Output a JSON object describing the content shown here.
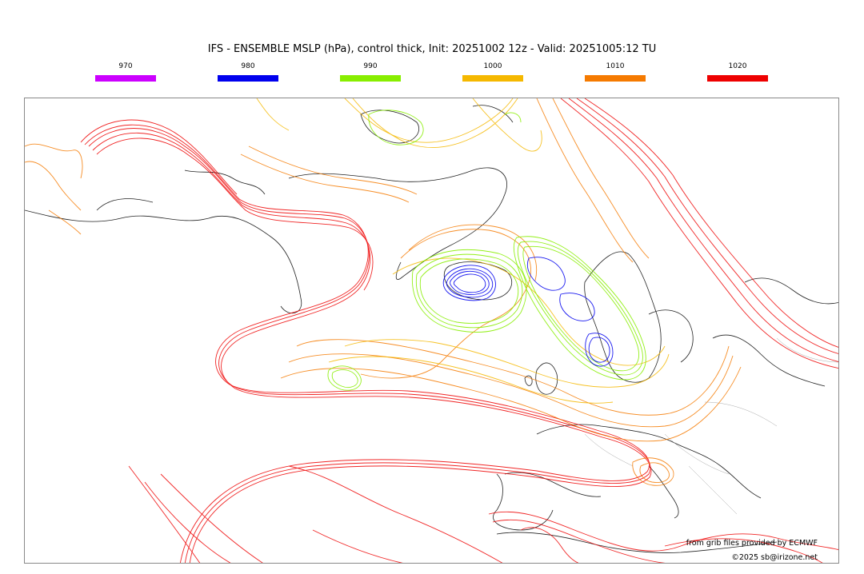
{
  "title": "IFS - ENSEMBLE MSLP (hPa), control thick, Init: 20251002 12z - Valid: 20251005:12 TU",
  "legend": [
    {
      "label": "970",
      "color": "#cc00ff"
    },
    {
      "label": "980",
      "color": "#0000ee"
    },
    {
      "label": "990",
      "color": "#88ee00"
    },
    {
      "label": "1000",
      "color": "#f5b800"
    },
    {
      "label": "1010",
      "color": "#f57a00"
    },
    {
      "label": "1020",
      "color": "#ee0000"
    }
  ],
  "credits": {
    "source": "from grib files provided by ECMWF",
    "copyright": "©2025 sb@irizone.net"
  },
  "icons": {
    "coastline": "coastline-outline",
    "isobars": "isobar-lines"
  }
}
